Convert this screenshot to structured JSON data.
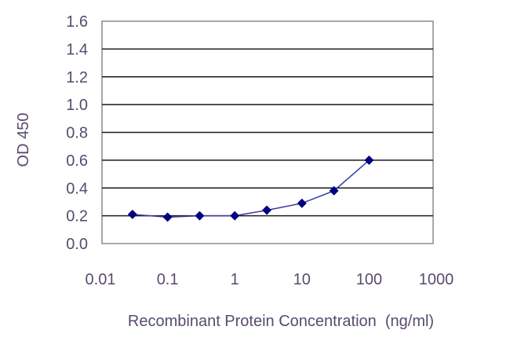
{
  "chart_data": {
    "type": "line",
    "title": "",
    "xlabel": "Recombinant Protein Concentration  (ng/ml)",
    "ylabel": "OD 450",
    "x_scale": "log",
    "xlim": [
      0.01,
      1000
    ],
    "ylim": [
      0.0,
      1.6
    ],
    "x_ticks": [
      "0.01",
      "0.1",
      "1",
      "10",
      "100",
      "1000"
    ],
    "y_ticks": [
      "0.0",
      "0.2",
      "0.4",
      "0.6",
      "0.8",
      "1.0",
      "1.2",
      "1.4",
      "1.6"
    ],
    "grid": "horizontal",
    "legend": "none",
    "series": [
      {
        "x": [
          0.03,
          0.1,
          0.3,
          1,
          3,
          10,
          30,
          100
        ],
        "y": [
          0.21,
          0.19,
          0.2,
          0.2,
          0.24,
          0.29,
          0.38,
          0.6
        ],
        "color": "#000080",
        "marker": "diamond"
      }
    ]
  }
}
